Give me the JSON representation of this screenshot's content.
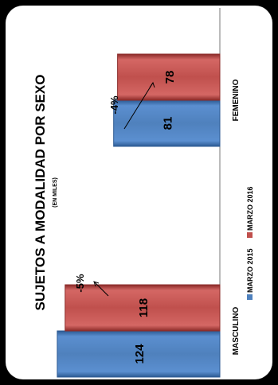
{
  "chart_data": {
    "type": "bar",
    "title": "SUJETOS A MODALIDAD POR SEXO",
    "subtitle": "(EN MILES)",
    "categories": [
      "MASCULINO",
      "FEMENINO"
    ],
    "series": [
      {
        "name": "MARZO 2015",
        "values": [
          124,
          81
        ],
        "color": "#4f81bd"
      },
      {
        "name": "MARZO 2016",
        "values": [
          118,
          78
        ],
        "color": "#c0504d"
      }
    ],
    "annotations": [
      "-5%",
      "-4%"
    ],
    "value_range": [
      0,
      130
    ],
    "grid": false,
    "legend_position": "bottom",
    "orientation": "rotated 90° counter-clockwise"
  }
}
